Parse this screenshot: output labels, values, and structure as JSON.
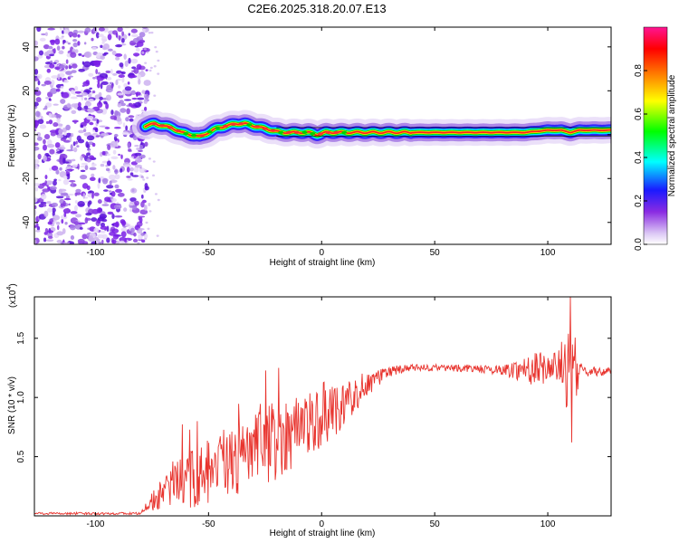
{
  "title": "C2E6.2025.318.20.07.E13",
  "chart_data": [
    {
      "type": "heatmap",
      "xlabel": "Height of straight line (km)",
      "ylabel": "Frequency (Hz)",
      "xlim": [
        -127,
        128
      ],
      "ylim": [
        -50,
        49
      ],
      "xticks": [
        -100,
        -50,
        0,
        50,
        100
      ],
      "yticks": [
        -40,
        -20,
        0,
        20,
        40
      ],
      "ridge": {
        "x": [
          -78,
          -74,
          -70,
          -66,
          -62,
          -58,
          -54,
          -50,
          -46,
          -42,
          -38,
          -34,
          -30,
          -26,
          -22,
          -18,
          -14,
          -10,
          -6,
          -2,
          2,
          6,
          10,
          20,
          40,
          60,
          80,
          90,
          100,
          106,
          110,
          114,
          128
        ],
        "y": [
          4,
          5,
          4,
          3,
          1,
          0,
          -1,
          1,
          3,
          4,
          5,
          5,
          4,
          3,
          2,
          1,
          1,
          1,
          1,
          0,
          1,
          1,
          1,
          1,
          1,
          1,
          1,
          1,
          2,
          2,
          1,
          2,
          2
        ]
      },
      "noise_region_x": [
        -127,
        -78
      ],
      "colorbar": {
        "label": "Normalized spectral amplitude",
        "range": [
          0,
          1
        ],
        "ticks": [
          "0.0",
          "0.2",
          "0.4",
          "0.6",
          "0.8"
        ],
        "tick_values": [
          0,
          0.2,
          0.4,
          0.6,
          0.8
        ],
        "colors": [
          "#ffffff",
          "#dcc8f5",
          "#8a2be2",
          "#1a1aff",
          "#00ffff",
          "#00ff00",
          "#ffff00",
          "#ff8000",
          "#ff0000",
          "#ff1493"
        ]
      }
    },
    {
      "type": "line",
      "xlabel": "Height of straight line (km)",
      "ylabel": "SNR (10 * v/v)",
      "scale_note": "(x10",
      "scale_exp": "4",
      "xlim": [
        -127,
        128
      ],
      "ylim": [
        0,
        1.85
      ],
      "xticks": [
        -100,
        -50,
        0,
        50,
        100
      ],
      "yticks": [
        0.5,
        1.0,
        1.5
      ],
      "ytick_labels": [
        "0.5",
        "1.0",
        "1.5"
      ],
      "color": "#e8332d",
      "envelope": {
        "x": [
          -127,
          -80,
          -76,
          -70,
          -60,
          -50,
          -40,
          -30,
          -20,
          -10,
          0,
          10,
          20,
          30,
          40,
          60,
          80,
          90,
          100,
          105,
          110,
          115,
          128
        ],
        "y": [
          0.02,
          0.02,
          0.1,
          0.2,
          0.3,
          0.35,
          0.45,
          0.55,
          0.65,
          0.75,
          0.85,
          0.95,
          1.1,
          1.22,
          1.25,
          1.25,
          1.23,
          1.24,
          1.25,
          1.26,
          1.25,
          1.22,
          1.22
        ]
      },
      "noise": {
        "x": [
          -127,
          -80,
          -76,
          -70,
          -60,
          -50,
          -40,
          -30,
          -20,
          -10,
          0,
          10,
          20,
          30,
          40,
          60,
          80,
          88,
          95,
          100,
          105,
          110,
          115,
          128
        ],
        "amp": [
          0.01,
          0.01,
          0.06,
          0.15,
          0.25,
          0.3,
          0.32,
          0.32,
          0.35,
          0.3,
          0.28,
          0.2,
          0.1,
          0.05,
          0.03,
          0.03,
          0.04,
          0.1,
          0.15,
          0.12,
          0.15,
          0.45,
          0.05,
          0.03
        ]
      },
      "events": [
        {
          "x": 110,
          "y": 1.85
        },
        {
          "x": 110.5,
          "y": 0.62
        },
        {
          "x": -55,
          "y": 0.8
        },
        {
          "x": -19,
          "y": 1.25
        }
      ]
    }
  ]
}
